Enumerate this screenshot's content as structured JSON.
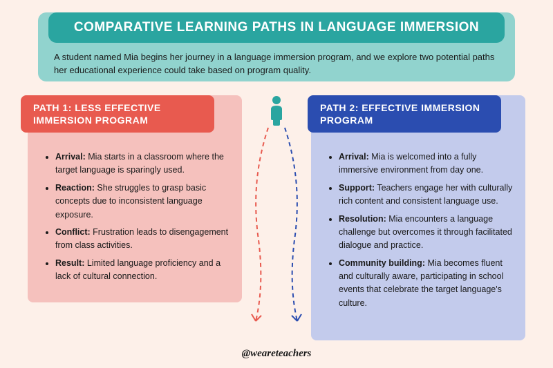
{
  "title": "COMPARATIVE LEARNING PATHS IN LANGUAGE IMMERSION",
  "intro": "A student named Mia begins her journey in a language immersion program, and we explore two potential paths her educational experience could take based on program quality.",
  "colors": {
    "background": "#fdf0e9",
    "header_box": "#91d3ce",
    "title_bar": "#2aa5a0",
    "path1_bg": "#f5c1bd",
    "path1_header": "#e85a4f",
    "path2_bg": "#c3cbec",
    "path2_header": "#2b4db0",
    "icon": "#2aa5a0",
    "arrow1": "#e85a4f",
    "arrow2": "#2b4db0"
  },
  "path1": {
    "title": "PATH 1: LESS EFFECTIVE IMMERSION PROGRAM",
    "items": [
      {
        "label": "Arrival:",
        "text": " Mia starts in a classroom where the target language is sparingly used."
      },
      {
        "label": "Reaction:",
        "text": " She struggles to grasp basic concepts due to inconsistent language exposure."
      },
      {
        "label": "Conflict:",
        "text": " Frustration leads to disengagement from class activities."
      },
      {
        "label": "Result:",
        "text": " Limited language proficiency and a lack of cultural connection."
      }
    ]
  },
  "path2": {
    "title": "PATH 2: EFFECTIVE IMMERSION PROGRAM",
    "items": [
      {
        "label": "Arrival:",
        "text": " Mia is welcomed into a fully immersive environment from day one."
      },
      {
        "label": "Support:",
        "text": " Teachers engage her with culturally rich content and consistent language use."
      },
      {
        "label": "Resolution:",
        "text": " Mia encounters a language challenge but overcomes it through facilitated dialogue and practice."
      },
      {
        "label": "Community building:",
        "text": " Mia becomes fluent and culturally aware, participating in school events that celebrate the target language's culture."
      }
    ]
  },
  "handle": "@weareteachers"
}
